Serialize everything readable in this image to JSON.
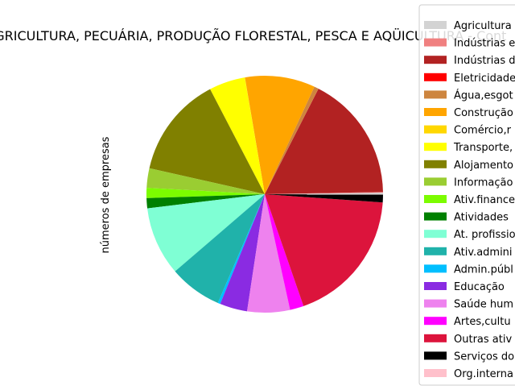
{
  "chart_data": {
    "type": "pie",
    "title": "AGRICULTURA, PECUÁRIA, PRODUÇÃO FLORESTAL, PESCA E AQÜICULTURA - Cont",
    "ylabel": "números de empresas",
    "legend_position": "right (clipped by figure edge)",
    "start_angle_deg": 0,
    "direction": "counterclockwise",
    "slices": [
      {
        "label": "Agricultura",
        "value": 0.2,
        "color": "#d3d3d3"
      },
      {
        "label": "Indústrias e",
        "value": 0.1,
        "color": "#f08080"
      },
      {
        "label": "Indústrias d",
        "value": 17.4,
        "color": "#b22222"
      },
      {
        "label": "Eletricidade",
        "value": 0.02,
        "color": "#ff0000"
      },
      {
        "label": "Água,esgot",
        "value": 0.6,
        "color": "#cd853f"
      },
      {
        "label": "Construção",
        "value": 9.7,
        "color": "#ffa500"
      },
      {
        "label": "Comércio,r",
        "value": 0.02,
        "color": "#ffd700"
      },
      {
        "label": "Transporte,",
        "value": 5.0,
        "color": "#ffff00"
      },
      {
        "label": "Alojamento",
        "value": 14.0,
        "color": "#808000"
      },
      {
        "label": "Informação",
        "value": 2.7,
        "color": "#9acd32"
      },
      {
        "label": "Ativ.finance",
        "value": 1.4,
        "color": "#7cfc00"
      },
      {
        "label": "Atividades",
        "value": 1.4,
        "color": "#008000"
      },
      {
        "label": "At. profissio",
        "value": 9.5,
        "color": "#7fffd4"
      },
      {
        "label": "Ativ.admini",
        "value": 7.3,
        "color": "#20b2aa"
      },
      {
        "label": "Admin.públ",
        "value": 0.35,
        "color": "#00bfff"
      },
      {
        "label": "Educação",
        "value": 3.8,
        "color": "#8a2be2"
      },
      {
        "label": "Saúde hum",
        "value": 5.9,
        "color": "#ee82ee"
      },
      {
        "label": "Artes,cultu",
        "value": 1.9,
        "color": "#ff00ff"
      },
      {
        "label": "Outras ativ",
        "value": 18.8,
        "color": "#dc143c"
      },
      {
        "label": "Serviços do",
        "value": 1.1,
        "color": "#000000"
      },
      {
        "label": "Org.interna",
        "value": 0.02,
        "color": "#ffc0cb"
      }
    ]
  }
}
